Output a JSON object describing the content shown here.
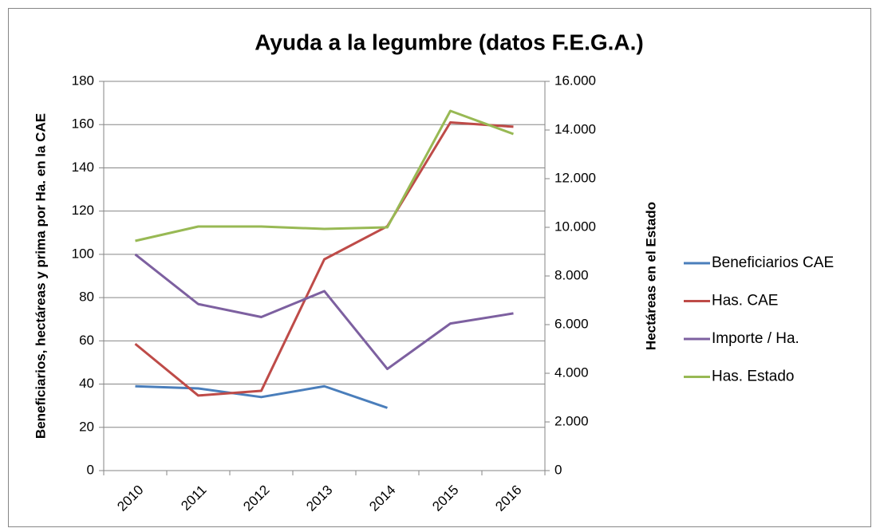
{
  "chart_data": {
    "type": "line",
    "title": "Ayuda a la legumbre (datos F.E.G.A.)",
    "y_label": "Beneficiarios, hectáreas y prima por Ha. en la CAE",
    "y2_label": "Hectáreas en el Estado",
    "categories": [
      "2010",
      "2011",
      "2012",
      "2013",
      "2014",
      "2015",
      "2016"
    ],
    "series": [
      {
        "name": "Beneficiarios CAE",
        "color": "#4a7ebb",
        "values": [
          39,
          38,
          34,
          39,
          29,
          null,
          null
        ]
      },
      {
        "name": "Has. CAE",
        "color": "#be4b48",
        "values": [
          58.6,
          34.7,
          36.9,
          97.7,
          113,
          161,
          159
        ]
      },
      {
        "name": "Importe / Ha.",
        "color": "#7d60a0",
        "values": [
          100,
          77,
          71,
          83,
          47,
          68,
          72.7
        ]
      },
      {
        "name": "Has. Estado",
        "color": "#98b954",
        "axis": "y2",
        "values": [
          9443,
          10033,
          10033,
          9934,
          10000,
          14787,
          13836
        ]
      }
    ],
    "ylim": [
      0,
      180
    ],
    "yticks": [
      0,
      20,
      40,
      60,
      80,
      100,
      120,
      140,
      160,
      180
    ],
    "y2lim": [
      0,
      16000
    ],
    "y2ticks": [
      0,
      {
        "value": 2000,
        "label": "2.000"
      },
      {
        "value": 4000,
        "label": "4.000"
      },
      {
        "value": 6000,
        "label": "6.000"
      },
      {
        "value": 8000,
        "label": "8.000"
      },
      {
        "value": 10000,
        "label": "10.000"
      },
      {
        "value": 12000,
        "label": "12.000"
      },
      {
        "value": 14000,
        "label": "14.000"
      },
      {
        "value": 16000,
        "label": "16.000"
      }
    ],
    "grid": true,
    "legend": "right"
  }
}
